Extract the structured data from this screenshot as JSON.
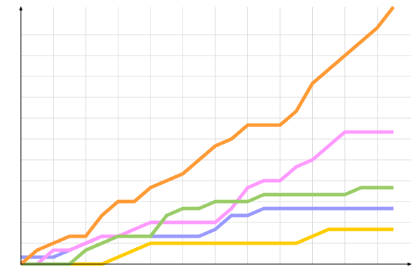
{
  "chart_data": {
    "type": "line",
    "title": "",
    "xlabel": "",
    "ylabel": "",
    "x": [
      0,
      1,
      2,
      3,
      4,
      5,
      6,
      7,
      8,
      9,
      10,
      11,
      12,
      13,
      14,
      15,
      16,
      17,
      18,
      19,
      20,
      21,
      22,
      23
    ],
    "xlim": [
      0,
      24
    ],
    "ylim": [
      0,
      37
    ],
    "grid": true,
    "grid_x_step": 2,
    "grid_y_step": 3,
    "legend": "none",
    "series": [
      {
        "color": "#ffcc00",
        "values": [
          0,
          0,
          0,
          0,
          0,
          0,
          1,
          2,
          3,
          3,
          3,
          3,
          3,
          3,
          3,
          3,
          3,
          3,
          4,
          5,
          5,
          5,
          5,
          5
        ]
      },
      {
        "color": "#9999ff",
        "values": [
          1,
          1,
          1,
          2,
          3,
          4,
          4,
          4,
          4,
          4,
          4,
          4,
          5,
          7,
          7,
          8,
          8,
          8,
          8,
          8,
          8,
          8,
          8,
          8
        ]
      },
      {
        "color": "#ff99ff",
        "values": [
          0,
          0,
          2,
          2,
          3,
          4,
          4,
          5,
          6,
          6,
          6,
          6,
          6,
          8,
          11,
          12,
          12,
          14,
          15,
          17,
          19,
          19,
          19,
          19
        ]
      },
      {
        "color": "#99cc66",
        "values": [
          0,
          0,
          0,
          0,
          2,
          3,
          4,
          4,
          4,
          7,
          8,
          8,
          9,
          9,
          9,
          10,
          10,
          10,
          10,
          10,
          10,
          11,
          11,
          11
        ]
      },
      {
        "color": "#ff9933",
        "values": [
          0,
          2,
          3,
          4,
          4,
          7,
          9,
          9,
          11,
          12,
          13,
          15,
          17,
          18,
          20,
          20,
          20,
          22,
          26,
          28,
          30,
          32,
          34,
          37
        ]
      }
    ]
  }
}
